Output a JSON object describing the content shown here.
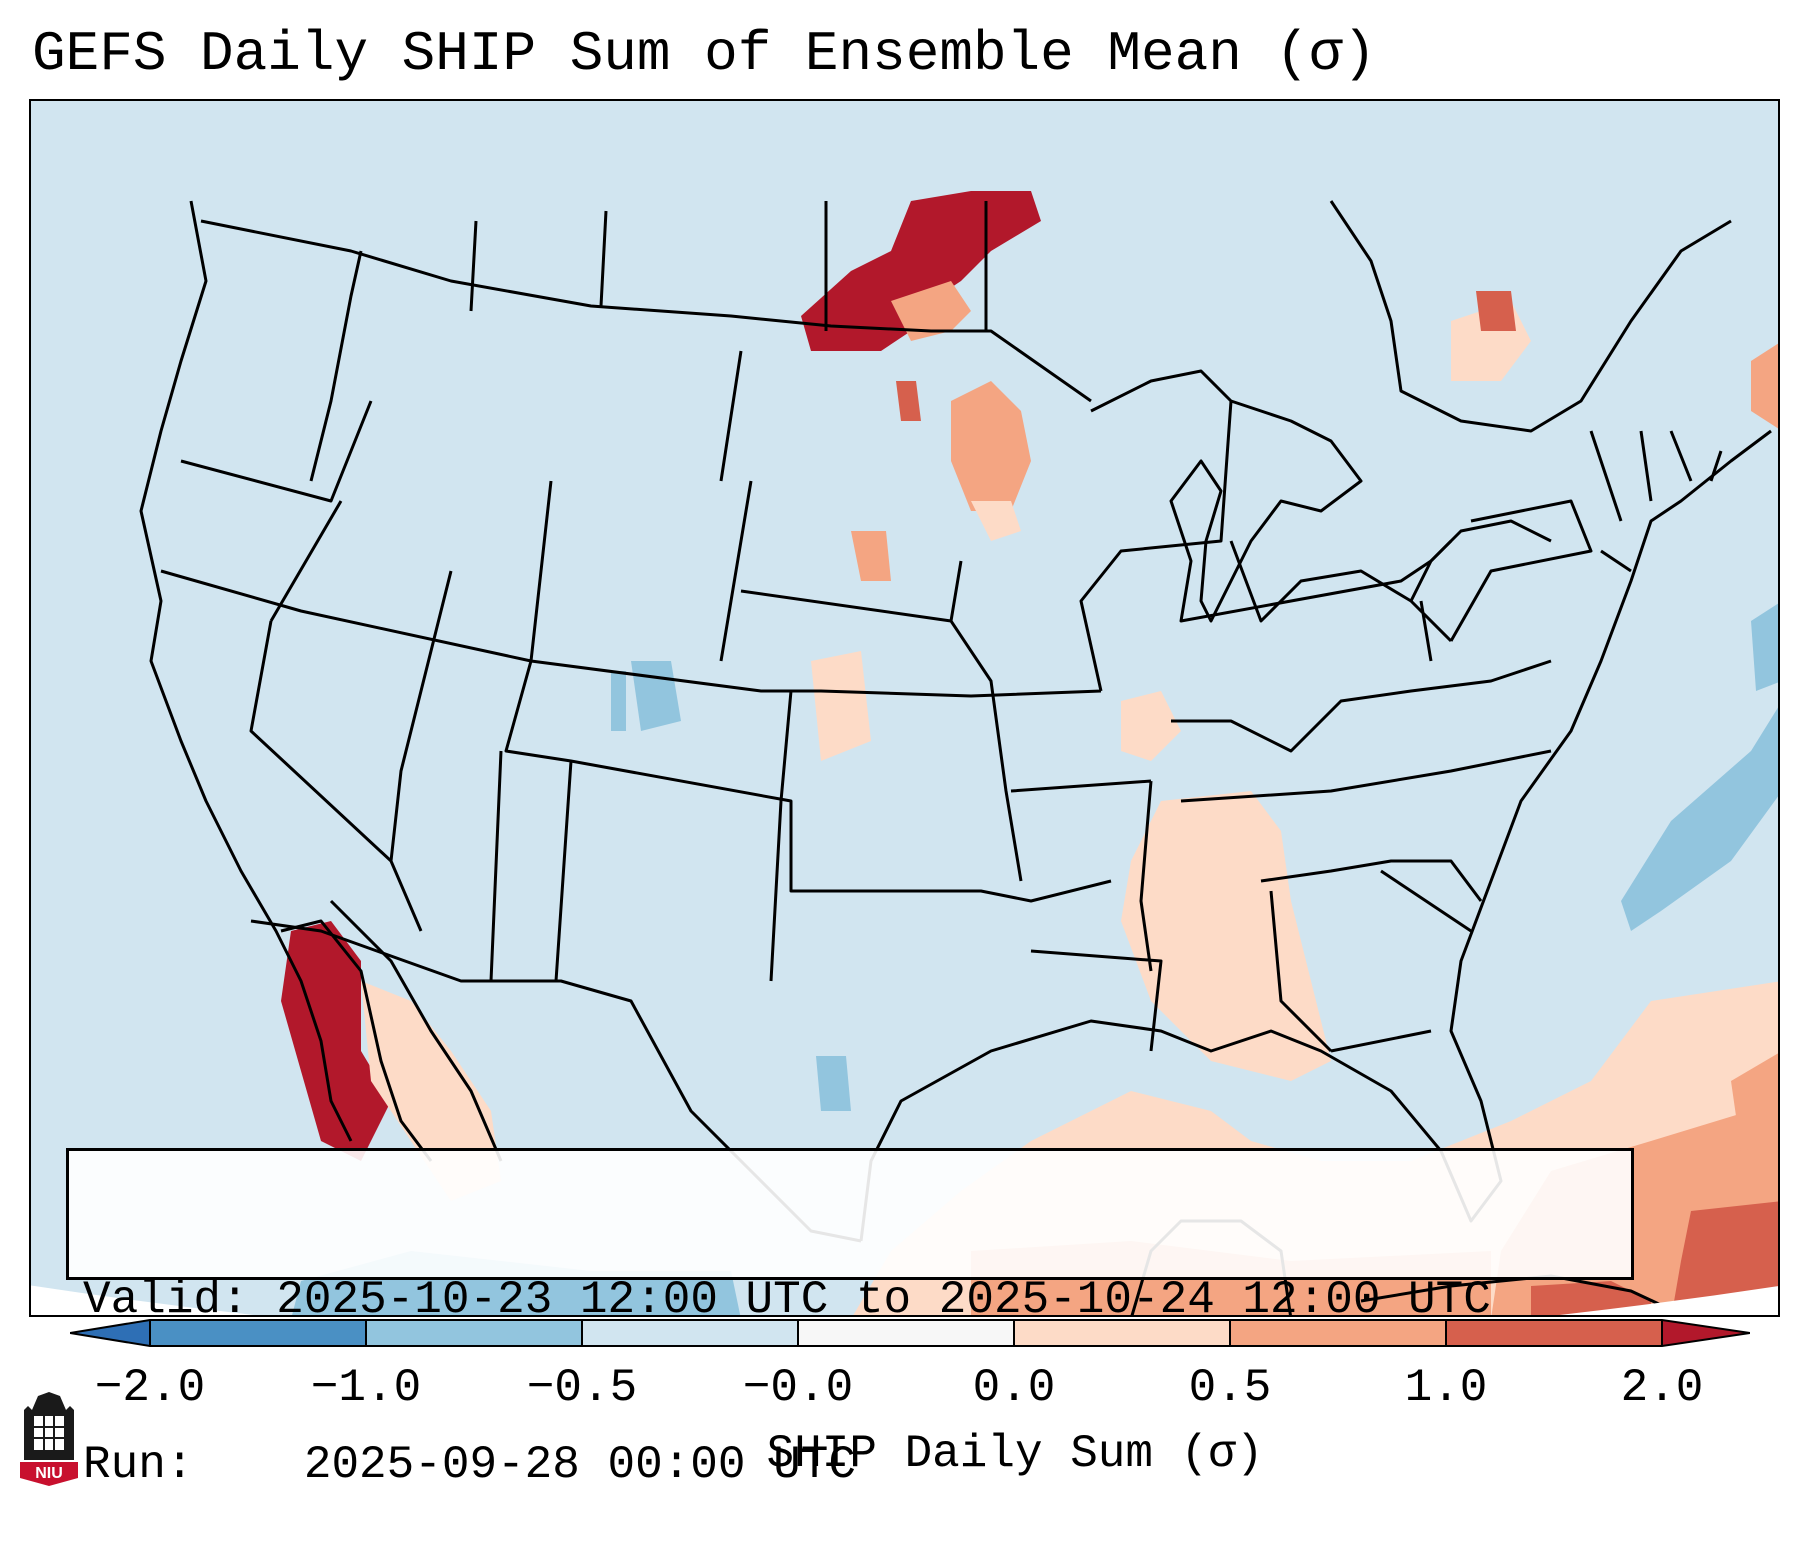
{
  "title": "GEFS Daily SHIP Sum of Ensemble Mean (σ)",
  "info": {
    "valid_label": "Valid:",
    "valid_value": "2025-10-23 12:00 UTC to 2025-10-24 12:00 UTC",
    "run_label": "Run:",
    "run_value": "2025-09-28 00:00 UTC"
  },
  "colorbar": {
    "label": "SHIP Daily Sum (σ)",
    "ticks": [
      "−2.0",
      "−1.0",
      "−0.5",
      "−0.0",
      "0.0",
      "0.5",
      "1.0",
      "2.0"
    ],
    "colors": {
      "below_min": "#2e6fb5",
      "neg_2_to_1": "#4a90c4",
      "neg_1_to_05": "#92c5de",
      "neg_05_to_0": "#d1e5f0",
      "zero_band": "#f7f7f7",
      "pos_0_to_05": "#fddbc7",
      "pos_05_to_1": "#f4a582",
      "pos_1_to_2": "#d6604d",
      "above_max": "#b2182b"
    }
  },
  "map": {
    "region": "Continental United States, Mexico, Gulf of Mexico and Caribbean",
    "background_category": "neg_05_to_0",
    "anomaly_areas": [
      {
        "area": "North Dakota / southern Manitoba",
        "category": "above_max"
      },
      {
        "area": "Baja California",
        "category": "above_max"
      },
      {
        "area": "Minnesota",
        "category": "pos_05_to_1"
      },
      {
        "area": "South Dakota",
        "category": "pos_05_to_1"
      },
      {
        "area": "Southeast US (Tennessee, Mississippi, Alabama)",
        "category": "pos_0_to_05"
      },
      {
        "area": "Gulf of Mexico / Caribbean",
        "category": "pos_0_to_05"
      },
      {
        "area": "Cuba / Hispaniola",
        "category": "pos_1_to_2"
      },
      {
        "area": "Western Atlantic off Carolinas",
        "category": "neg_1_to_05"
      },
      {
        "area": "Colorado",
        "category": "neg_1_to_05"
      }
    ]
  },
  "logo": {
    "text": "NIU",
    "color": "#c8102e"
  }
}
